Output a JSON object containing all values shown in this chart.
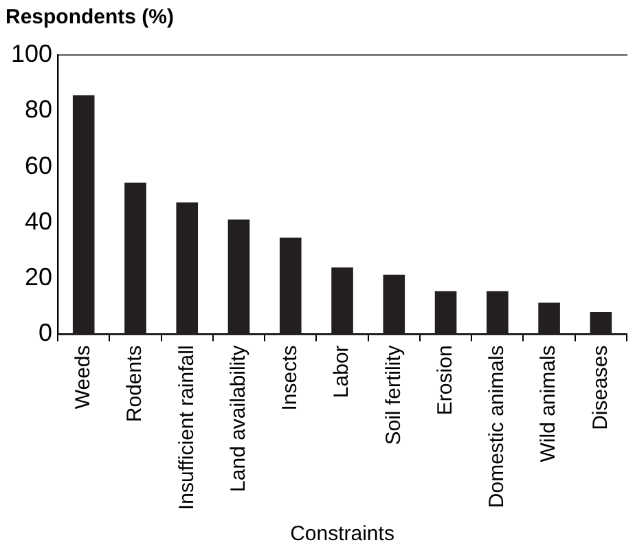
{
  "chart_data": {
    "type": "bar",
    "ylabel": "Respondents (%)",
    "xlabel": "Constraints",
    "categories": [
      "Weeds",
      "Rodents",
      "Insufficient rainfall",
      "Land availability",
      "Insects",
      "Labor",
      "Soil fertility",
      "Erosion",
      "Domestic animals",
      "Wild animals",
      "Diseases"
    ],
    "values": [
      85.6,
      54.3,
      47.2,
      41.1,
      34.6,
      23.9,
      21.3,
      15.4,
      15.4,
      11.3,
      8
    ],
    "color": "#231f20",
    "ylim": [
      0,
      100
    ],
    "yticks": [
      0,
      20,
      40,
      60,
      80,
      100
    ],
    "grid": false,
    "legend": false
  }
}
